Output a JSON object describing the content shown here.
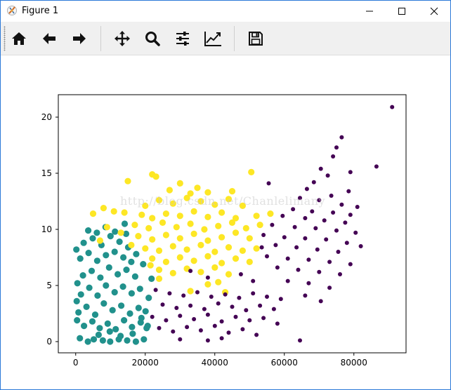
{
  "window": {
    "title": "Figure 1",
    "controls": [
      "minimize",
      "maximize",
      "close"
    ]
  },
  "toolbar": {
    "buttons": [
      {
        "id": "home",
        "icon": "home-icon"
      },
      {
        "id": "back",
        "icon": "arrow-left-icon"
      },
      {
        "id": "forward",
        "icon": "arrow-right-icon"
      },
      {
        "id": "pan",
        "icon": "move-icon"
      },
      {
        "id": "zoom",
        "icon": "search-icon"
      },
      {
        "id": "subplots",
        "icon": "sliders-icon"
      },
      {
        "id": "customize",
        "icon": "line-chart-icon"
      },
      {
        "id": "save",
        "icon": "floppy-icon"
      }
    ]
  },
  "watermark": "http://blog.csdn.net/Chanlelimany",
  "colors": {
    "cluster_purple": "#440154",
    "cluster_teal": "#21918c",
    "cluster_yellow": "#fde725"
  },
  "chart_data": {
    "type": "scatter",
    "title": "",
    "xlabel": "",
    "ylabel": "",
    "xlim": [
      -5000,
      95000
    ],
    "ylim": [
      -1.0,
      22.0
    ],
    "xticks": [
      0,
      20000,
      40000,
      60000,
      80000
    ],
    "yticks": [
      0,
      5,
      10,
      15,
      20
    ],
    "grid": false,
    "legend": "none",
    "series": [
      {
        "color": "#21918c",
        "values": [
          [
            1200,
            0.3
          ],
          [
            3500,
            0.0
          ],
          [
            5200,
            0.2
          ],
          [
            7800,
            0.1
          ],
          [
            9900,
            0.0
          ],
          [
            12400,
            0.2
          ],
          [
            14800,
            0.1
          ],
          [
            17300,
            0.0
          ],
          [
            19600,
            0.2
          ],
          [
            2400,
            1.4
          ],
          [
            4800,
            1.8
          ],
          [
            6900,
            1.2
          ],
          [
            9200,
            1.6
          ],
          [
            11500,
            1.1
          ],
          [
            13900,
            1.9
          ],
          [
            16200,
            1.3
          ],
          [
            18700,
            1.7
          ],
          [
            20400,
            1.2
          ],
          [
            800,
            2.6
          ],
          [
            3100,
            3.1
          ],
          [
            5600,
            2.4
          ],
          [
            8100,
            3.4
          ],
          [
            10600,
            2.8
          ],
          [
            13100,
            3.2
          ],
          [
            15600,
            2.5
          ],
          [
            18100,
            3.0
          ],
          [
            20100,
            2.7
          ],
          [
            1500,
            4.2
          ],
          [
            3900,
            4.8
          ],
          [
            6300,
            4.1
          ],
          [
            8700,
            5.0
          ],
          [
            11200,
            4.4
          ],
          [
            13600,
            4.9
          ],
          [
            16100,
            4.3
          ],
          [
            18500,
            4.7
          ],
          [
            2100,
            5.9
          ],
          [
            4600,
            6.3
          ],
          [
            7100,
            5.7
          ],
          [
            9600,
            6.6
          ],
          [
            12100,
            6.0
          ],
          [
            14600,
            6.4
          ],
          [
            17100,
            5.8
          ],
          [
            1300,
            7.4
          ],
          [
            3700,
            7.9
          ],
          [
            6200,
            7.2
          ],
          [
            8700,
            7.7
          ],
          [
            11200,
            8.0
          ],
          [
            13700,
            7.5
          ],
          [
            16000,
            7.1
          ],
          [
            2300,
            8.8
          ],
          [
            4900,
            9.2
          ],
          [
            7400,
            8.6
          ],
          [
            10000,
            9.4
          ],
          [
            12600,
            8.9
          ],
          [
            14500,
            9.6
          ],
          [
            3600,
            9.9
          ],
          [
            6100,
            9.7
          ],
          [
            8600,
            10.2
          ],
          [
            11300,
            9.8
          ],
          [
            14100,
            10.5
          ],
          [
            200,
            8.2
          ],
          [
            500,
            5.2
          ],
          [
            300,
            3.6
          ],
          [
            400,
            1.9
          ],
          [
            21000,
            3.9
          ],
          [
            21800,
            5.6
          ],
          [
            19400,
            6.9
          ],
          [
            20700,
            1.4
          ],
          [
            15100,
            8.4
          ],
          [
            17400,
            7.8
          ],
          [
            18900,
            2.1
          ],
          [
            6600,
            0.6
          ],
          [
            9800,
            0.9
          ],
          [
            12900,
            0.5
          ],
          [
            16400,
            0.7
          ]
        ]
      },
      {
        "color": "#fde725",
        "values": [
          [
            22000,
            14.9
          ],
          [
            23100,
            14.7
          ],
          [
            50500,
            15.1
          ],
          [
            15000,
            14.3
          ],
          [
            45000,
            13.4
          ],
          [
            30000,
            14.1
          ],
          [
            35000,
            13.7
          ],
          [
            27000,
            13.5
          ],
          [
            33000,
            13.2
          ],
          [
            38000,
            13.3
          ],
          [
            20000,
            12.1
          ],
          [
            24000,
            12.6
          ],
          [
            28000,
            12.3
          ],
          [
            32000,
            12.8
          ],
          [
            36000,
            12.5
          ],
          [
            40000,
            12.2
          ],
          [
            44000,
            12.7
          ],
          [
            48000,
            12.1
          ],
          [
            14000,
            11.5
          ],
          [
            19000,
            11.3
          ],
          [
            22000,
            11.0
          ],
          [
            26000,
            11.4
          ],
          [
            30000,
            11.2
          ],
          [
            34000,
            11.6
          ],
          [
            38000,
            11.1
          ],
          [
            42000,
            11.5
          ],
          [
            46000,
            11.0
          ],
          [
            52000,
            11.2
          ],
          [
            56000,
            11.4
          ],
          [
            17000,
            10.4
          ],
          [
            21000,
            10.1
          ],
          [
            25000,
            10.6
          ],
          [
            29000,
            10.2
          ],
          [
            33000,
            10.5
          ],
          [
            37000,
            10.0
          ],
          [
            41000,
            10.3
          ],
          [
            45000,
            10.6
          ],
          [
            49000,
            10.1
          ],
          [
            53000,
            10.4
          ],
          [
            13000,
            9.7
          ],
          [
            18000,
            9.4
          ],
          [
            22000,
            9.1
          ],
          [
            26000,
            9.5
          ],
          [
            30000,
            9.2
          ],
          [
            34000,
            9.6
          ],
          [
            38000,
            9.0
          ],
          [
            42000,
            9.3
          ],
          [
            46000,
            9.7
          ],
          [
            50000,
            9.2
          ],
          [
            16000,
            8.6
          ],
          [
            20000,
            8.3
          ],
          [
            24000,
            8.1
          ],
          [
            28000,
            8.5
          ],
          [
            32000,
            8.2
          ],
          [
            36000,
            8.6
          ],
          [
            40000,
            8.0
          ],
          [
            44000,
            8.4
          ],
          [
            48000,
            8.1
          ],
          [
            52000,
            8.3
          ],
          [
            22000,
            7.4
          ],
          [
            26000,
            7.1
          ],
          [
            30000,
            7.5
          ],
          [
            34000,
            7.2
          ],
          [
            38000,
            7.6
          ],
          [
            42000,
            7.0
          ],
          [
            46000,
            7.4
          ],
          [
            50000,
            7.1
          ],
          [
            24000,
            6.4
          ],
          [
            28000,
            6.1
          ],
          [
            32000,
            6.5
          ],
          [
            36000,
            6.2
          ],
          [
            40000,
            6.6
          ],
          [
            44000,
            6.0
          ],
          [
            5000,
            11.4
          ],
          [
            8000,
            11.9
          ],
          [
            11000,
            11.6
          ],
          [
            9000,
            10.2
          ],
          [
            7000,
            9.0
          ],
          [
            24000,
            5.6
          ],
          [
            41000,
            5.3
          ],
          [
            43000,
            4.4
          ],
          [
            33000,
            4.5
          ],
          [
            38000,
            5.1
          ],
          [
            21500,
            6.8
          ]
        ]
      },
      {
        "color": "#440154",
        "values": [
          [
            91000,
            20.9
          ],
          [
            76500,
            18.2
          ],
          [
            75000,
            17.3
          ],
          [
            74000,
            16.5
          ],
          [
            86500,
            15.6
          ],
          [
            79000,
            15.1
          ],
          [
            70500,
            15.4
          ],
          [
            72500,
            14.8
          ],
          [
            68500,
            14.2
          ],
          [
            66500,
            13.6
          ],
          [
            78500,
            13.4
          ],
          [
            73500,
            13.0
          ],
          [
            64500,
            12.8
          ],
          [
            70000,
            12.6
          ],
          [
            76500,
            12.2
          ],
          [
            81000,
            12.0
          ],
          [
            62500,
            11.8
          ],
          [
            68000,
            11.6
          ],
          [
            74000,
            11.5
          ],
          [
            79000,
            11.3
          ],
          [
            59500,
            11.2
          ],
          [
            66000,
            11.0
          ],
          [
            71500,
            10.8
          ],
          [
            77500,
            10.6
          ],
          [
            56500,
            10.4
          ],
          [
            63000,
            10.2
          ],
          [
            69000,
            10.1
          ],
          [
            75000,
            9.9
          ],
          [
            80500,
            9.7
          ],
          [
            54000,
            9.5
          ],
          [
            60000,
            9.3
          ],
          [
            66000,
            9.2
          ],
          [
            72000,
            9.1
          ],
          [
            78000,
            8.8
          ],
          [
            82000,
            8.5
          ],
          [
            57500,
            8.6
          ],
          [
            63500,
            8.4
          ],
          [
            69500,
            8.2
          ],
          [
            75500,
            8.0
          ],
          [
            55000,
            7.6
          ],
          [
            61000,
            7.4
          ],
          [
            67000,
            7.3
          ],
          [
            73000,
            7.1
          ],
          [
            79000,
            6.9
          ],
          [
            58000,
            6.6
          ],
          [
            64000,
            6.4
          ],
          [
            70000,
            6.2
          ],
          [
            76000,
            6.0
          ],
          [
            61000,
            5.4
          ],
          [
            67000,
            5.2
          ],
          [
            73000,
            4.8
          ],
          [
            66000,
            4.1
          ],
          [
            70500,
            3.6
          ],
          [
            23000,
            4.6
          ],
          [
            27000,
            4.3
          ],
          [
            31000,
            4.1
          ],
          [
            35000,
            4.4
          ],
          [
            39000,
            4.0
          ],
          [
            43000,
            4.2
          ],
          [
            47000,
            3.9
          ],
          [
            51000,
            4.3
          ],
          [
            55000,
            4.0
          ],
          [
            59000,
            3.8
          ],
          [
            25000,
            3.3
          ],
          [
            29000,
            3.0
          ],
          [
            33000,
            3.2
          ],
          [
            37000,
            2.9
          ],
          [
            41000,
            3.4
          ],
          [
            45000,
            3.1
          ],
          [
            49000,
            2.8
          ],
          [
            53000,
            3.2
          ],
          [
            57000,
            2.9
          ],
          [
            22000,
            2.2
          ],
          [
            26000,
            1.9
          ],
          [
            30000,
            2.3
          ],
          [
            34000,
            2.0
          ],
          [
            38000,
            2.4
          ],
          [
            42000,
            1.8
          ],
          [
            46000,
            2.2
          ],
          [
            50000,
            1.9
          ],
          [
            54000,
            2.1
          ],
          [
            58000,
            1.6
          ],
          [
            24000,
            1.2
          ],
          [
            28000,
            0.9
          ],
          [
            32000,
            1.3
          ],
          [
            36000,
            1.0
          ],
          [
            40000,
            1.4
          ],
          [
            44000,
            0.8
          ],
          [
            48000,
            1.1
          ],
          [
            52000,
            0.6
          ],
          [
            30000,
            0.2
          ],
          [
            38000,
            0.1
          ],
          [
            42000,
            0.3
          ],
          [
            64500,
            0.1
          ],
          [
            55500,
            14.1
          ],
          [
            38000,
            5.7
          ],
          [
            33000,
            6.3
          ],
          [
            51000,
            5.4
          ],
          [
            53500,
            8.4
          ],
          [
            47500,
            6.0
          ]
        ]
      }
    ]
  }
}
